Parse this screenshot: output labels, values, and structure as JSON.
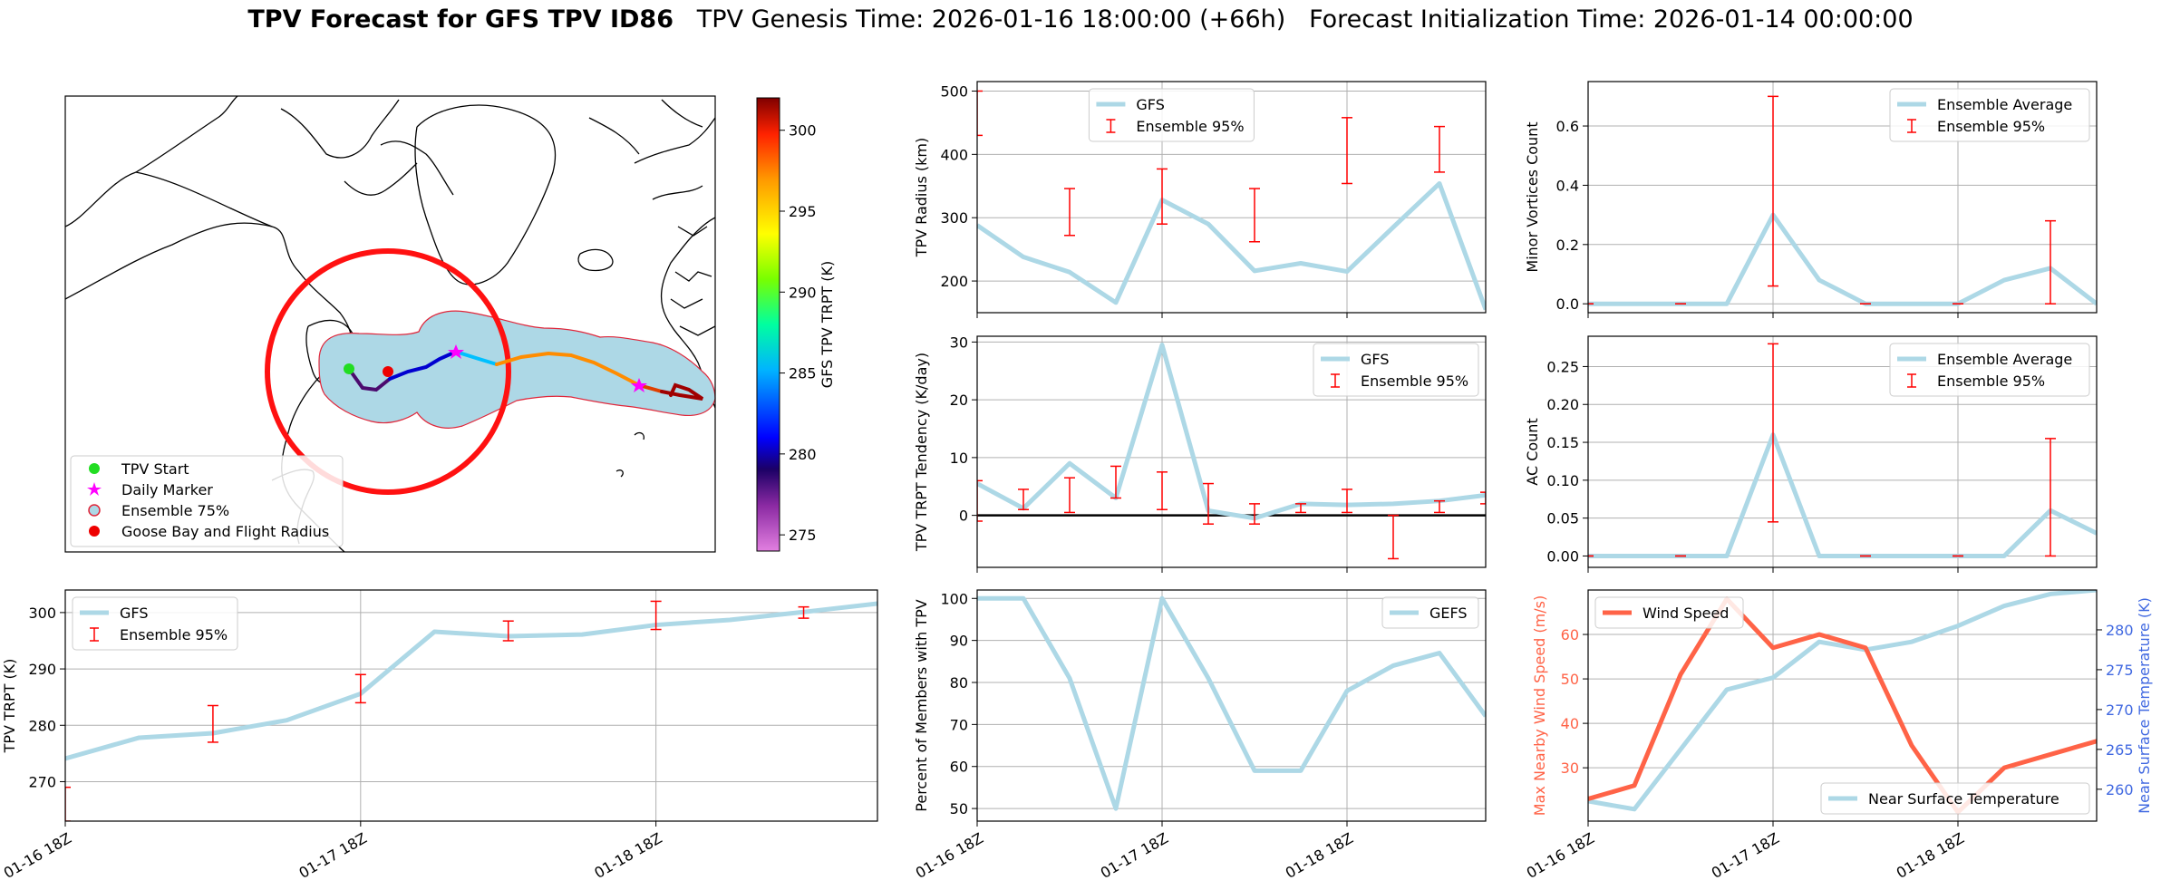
{
  "title": {
    "bold": "TPV Forecast for GFS TPV ID86",
    "genesis": "TPV Genesis Time: 2026-01-16 18:00:00 (+66h)",
    "init": "Forecast Initialization Time: 2026-01-14 00:00:00"
  },
  "colors": {
    "line": "#add8e6",
    "error": "#ff0000",
    "wind": "#ff6347",
    "temp_axis": "#4169e1",
    "gridline": "#b0b0b0"
  },
  "chart_data": [
    {
      "id": "map",
      "type": "map",
      "legend": [
        "TPV Start",
        "Daily Marker",
        "Ensemble 75%",
        "Goose Bay and Flight Radius"
      ],
      "colorbar": {
        "label": "GFS TPV TRPT (K)",
        "ticks": [
          275,
          280,
          285,
          290,
          295,
          300
        ],
        "range": [
          274,
          302
        ]
      }
    },
    {
      "id": "trpt",
      "type": "line",
      "ylabel": "TPV TRPT (K)",
      "ylim": [
        263,
        304
      ],
      "yticks": [
        270,
        280,
        290,
        300
      ],
      "xlim": [
        0,
        22
      ],
      "xticks": [
        {
          "x": 0,
          "label": "01-16 18Z"
        },
        {
          "x": 8,
          "label": "01-17 18Z"
        },
        {
          "x": 16,
          "label": "01-18 18Z"
        }
      ],
      "legend": [
        "GFS",
        "Ensemble 95%"
      ],
      "legend_pos": "upper-left",
      "x": [
        0,
        2,
        4,
        6,
        8,
        10,
        12,
        14,
        16,
        18,
        20,
        22
      ],
      "values": [
        274.1,
        277.8,
        278.6,
        280.9,
        285.6,
        296.6,
        295.8,
        296.1,
        297.8,
        298.7,
        300.1,
        301.6
      ],
      "err": [
        {
          "x": 0,
          "lo": 263,
          "hi": 269
        },
        {
          "x": 4,
          "lo": 277,
          "hi": 283.5
        },
        {
          "x": 8,
          "lo": 284,
          "hi": 289
        },
        {
          "x": 12,
          "lo": 295,
          "hi": 298.5
        },
        {
          "x": 16,
          "lo": 297,
          "hi": 302
        },
        {
          "x": 20,
          "lo": 299,
          "hi": 301
        }
      ]
    },
    {
      "id": "radius",
      "type": "line",
      "ylabel": "TPV Radius (km)",
      "ylim": [
        150,
        515
      ],
      "yticks": [
        200,
        300,
        400,
        500
      ],
      "xlim": [
        0,
        22
      ],
      "xticks": [
        {
          "x": 0,
          "label": ""
        },
        {
          "x": 8,
          "label": ""
        },
        {
          "x": 16,
          "label": ""
        }
      ],
      "legend": [
        "GFS",
        "Ensemble 95%"
      ],
      "legend_pos": "upper-center",
      "x": [
        0,
        2,
        4,
        6,
        8,
        10,
        12,
        14,
        16,
        18,
        20,
        22
      ],
      "values": [
        288,
        238,
        214,
        166,
        328,
        290,
        216,
        228,
        215,
        285,
        354,
        155
      ],
      "err": [
        {
          "x": 0,
          "lo": 430,
          "hi": 500
        },
        {
          "x": 4,
          "lo": 272,
          "hi": 346
        },
        {
          "x": 8,
          "lo": 290,
          "hi": 377
        },
        {
          "x": 12,
          "lo": 262,
          "hi": 346
        },
        {
          "x": 16,
          "lo": 354,
          "hi": 458
        },
        {
          "x": 20,
          "lo": 372,
          "hi": 444
        }
      ]
    },
    {
      "id": "tendency",
      "type": "line",
      "ylabel": "TPV TRPT Tendency (K/day)",
      "ylim": [
        -9,
        31
      ],
      "yticks": [
        0,
        10,
        20,
        30
      ],
      "zero_line": true,
      "xlim": [
        0,
        22
      ],
      "xticks": [
        {
          "x": 0,
          "label": ""
        },
        {
          "x": 8,
          "label": ""
        },
        {
          "x": 16,
          "label": ""
        }
      ],
      "legend": [
        "GFS",
        "Ensemble 95%"
      ],
      "legend_pos": "upper-right",
      "x": [
        0,
        2,
        4,
        6,
        8,
        10,
        12,
        14,
        16,
        18,
        20,
        22
      ],
      "values": [
        5.5,
        1.2,
        9.0,
        3.0,
        29.5,
        0.8,
        -0.5,
        2.0,
        1.8,
        2.0,
        2.5,
        3.5
      ],
      "err": [
        {
          "x": 0,
          "lo": -1,
          "hi": 6
        },
        {
          "x": 2,
          "lo": 1,
          "hi": 4.5
        },
        {
          "x": 4,
          "lo": 0.5,
          "hi": 6.5
        },
        {
          "x": 6,
          "lo": 3,
          "hi": 8.5
        },
        {
          "x": 8,
          "lo": 1,
          "hi": 7.5
        },
        {
          "x": 10,
          "lo": -1.5,
          "hi": 5.5
        },
        {
          "x": 12,
          "lo": -1.5,
          "hi": 2
        },
        {
          "x": 14,
          "lo": 0.5,
          "hi": 2
        },
        {
          "x": 16,
          "lo": 0.5,
          "hi": 4.5
        },
        {
          "x": 18,
          "lo": -7.5,
          "hi": 0
        },
        {
          "x": 20,
          "lo": 0.5,
          "hi": 2.5
        },
        {
          "x": 22,
          "lo": 2,
          "hi": 4
        }
      ]
    },
    {
      "id": "members",
      "type": "line",
      "ylabel": "Percent of Members with TPV",
      "ylim": [
        47,
        102
      ],
      "yticks": [
        50,
        60,
        70,
        80,
        90,
        100
      ],
      "xlim": [
        0,
        22
      ],
      "xticks": [
        {
          "x": 0,
          "label": "01-16 18Z"
        },
        {
          "x": 8,
          "label": "01-17 18Z"
        },
        {
          "x": 16,
          "label": "01-18 18Z"
        }
      ],
      "legend": [
        "GEFS"
      ],
      "legend_pos": "upper-right",
      "x": [
        0,
        2,
        4,
        6,
        8,
        10,
        12,
        14,
        16,
        18,
        20,
        22
      ],
      "values": [
        100,
        100,
        81,
        50,
        100,
        81,
        59,
        59,
        78,
        84,
        87,
        72
      ],
      "err": []
    },
    {
      "id": "minor",
      "type": "line",
      "ylabel": "Minor Vortices Count",
      "ylim": [
        -0.03,
        0.75
      ],
      "yticks": [
        0.0,
        0.2,
        0.4,
        0.6
      ],
      "ytick_labels": [
        "0.0",
        "0.2",
        "0.4",
        "0.6"
      ],
      "xlim": [
        0,
        22
      ],
      "xticks": [
        {
          "x": 0,
          "label": ""
        },
        {
          "x": 8,
          "label": ""
        },
        {
          "x": 16,
          "label": ""
        }
      ],
      "legend": [
        "Ensemble Average",
        "Ensemble 95%"
      ],
      "legend_pos": "upper-right",
      "x": [
        0,
        2,
        4,
        6,
        8,
        10,
        12,
        14,
        16,
        18,
        20,
        22
      ],
      "values": [
        0,
        0,
        0,
        0,
        0.3,
        0.08,
        0,
        0,
        0,
        0.08,
        0.12,
        0
      ],
      "err": [
        {
          "x": 0,
          "lo": 0,
          "hi": 0
        },
        {
          "x": 4,
          "lo": 0,
          "hi": 0
        },
        {
          "x": 8,
          "lo": 0.06,
          "hi": 0.7
        },
        {
          "x": 12,
          "lo": 0,
          "hi": 0
        },
        {
          "x": 16,
          "lo": 0,
          "hi": 0
        },
        {
          "x": 20,
          "lo": 0,
          "hi": 0.28
        }
      ]
    },
    {
      "id": "ac",
      "type": "line",
      "ylabel": "AC Count",
      "ylim": [
        -0.015,
        0.29
      ],
      "yticks": [
        0,
        0.05,
        0.1,
        0.15,
        0.2,
        0.25
      ],
      "ytick_labels": [
        "0.00",
        "0.05",
        "0.10",
        "0.15",
        "0.20",
        "0.25"
      ],
      "xlim": [
        0,
        22
      ],
      "xticks": [
        {
          "x": 0,
          "label": ""
        },
        {
          "x": 8,
          "label": ""
        },
        {
          "x": 16,
          "label": ""
        }
      ],
      "legend": [
        "Ensemble Average",
        "Ensemble 95%"
      ],
      "legend_pos": "upper-right",
      "x": [
        0,
        2,
        4,
        6,
        8,
        10,
        12,
        14,
        16,
        18,
        20,
        22
      ],
      "values": [
        0,
        0,
        0,
        0,
        0.16,
        0,
        0,
        0,
        0,
        0,
        0.06,
        0.03
      ],
      "err": [
        {
          "x": 0,
          "lo": 0,
          "hi": 0
        },
        {
          "x": 4,
          "lo": 0,
          "hi": 0
        },
        {
          "x": 8,
          "lo": 0.045,
          "hi": 0.28
        },
        {
          "x": 12,
          "lo": 0,
          "hi": 0
        },
        {
          "x": 16,
          "lo": 0,
          "hi": 0
        },
        {
          "x": 20,
          "lo": 0,
          "hi": 0.155
        }
      ]
    },
    {
      "id": "wind",
      "type": "dual-line",
      "ylabel": "Max Nearby Wind Speed (m/s)",
      "ylabel2": "Near Surface Temperature (K)",
      "ylim": [
        18,
        70
      ],
      "yticks": [
        30,
        40,
        50,
        60
      ],
      "ylim2": [
        256,
        285
      ],
      "yticks2": [
        260,
        265,
        270,
        275,
        280
      ],
      "xlim": [
        0,
        22
      ],
      "xticks": [
        {
          "x": 0,
          "label": "01-16 18Z"
        },
        {
          "x": 8,
          "label": "01-17 18Z"
        },
        {
          "x": 16,
          "label": "01-18 18Z"
        }
      ],
      "legend": [
        "Wind Speed"
      ],
      "legend2": [
        "Near Surface Temperature"
      ],
      "x": [
        0,
        2,
        4,
        6,
        8,
        10,
        12,
        14,
        16,
        18,
        20,
        22
      ],
      "values": [
        23,
        26,
        51,
        68,
        57,
        60,
        57,
        35,
        20,
        30,
        33,
        36
      ],
      "values2": [
        258.5,
        257.5,
        265,
        272.5,
        274,
        278.5,
        277.5,
        278.5,
        280.5,
        283,
        284.5,
        285
      ]
    }
  ]
}
